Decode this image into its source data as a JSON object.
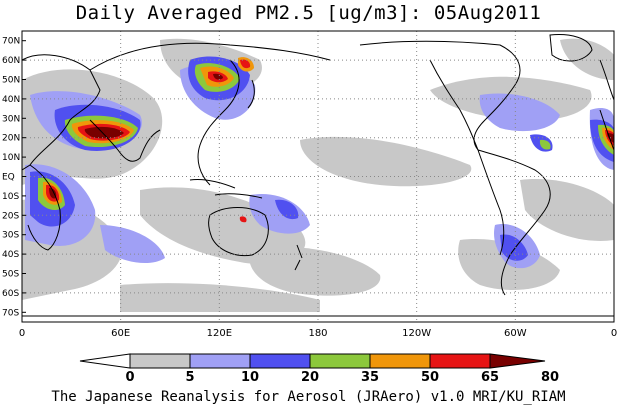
{
  "title": "Daily Averaged PM2.5 [ug/m3]: 05Aug2011",
  "footer": "The Japanese Reanalysis for Aerosol (JRAero) v1.0 MRI/KU_RIAM",
  "map": {
    "lat_labels": [
      "70N",
      "60N",
      "50N",
      "40N",
      "30N",
      "20N",
      "10N",
      "EQ",
      "10S",
      "20S",
      "30S",
      "40S",
      "50S",
      "60S",
      "70S"
    ],
    "lon_labels": [
      "0",
      "60E",
      "120E",
      "180",
      "120W",
      "60W",
      "0"
    ],
    "lat_values": [
      70,
      60,
      50,
      40,
      30,
      20,
      10,
      0,
      -10,
      -20,
      -30,
      -40,
      -50,
      -60,
      -70
    ],
    "lon_values": [
      0,
      60,
      120,
      180,
      240,
      300,
      360
    ]
  },
  "colorbar": {
    "levels": [
      "0",
      "5",
      "10",
      "20",
      "35",
      "50",
      "65",
      "80"
    ],
    "colors": [
      "#ffffff",
      "#c8c8c8",
      "#a0a0f5",
      "#5050f0",
      "#8cc83c",
      "#f0960a",
      "#e61414",
      "#780000"
    ]
  }
}
